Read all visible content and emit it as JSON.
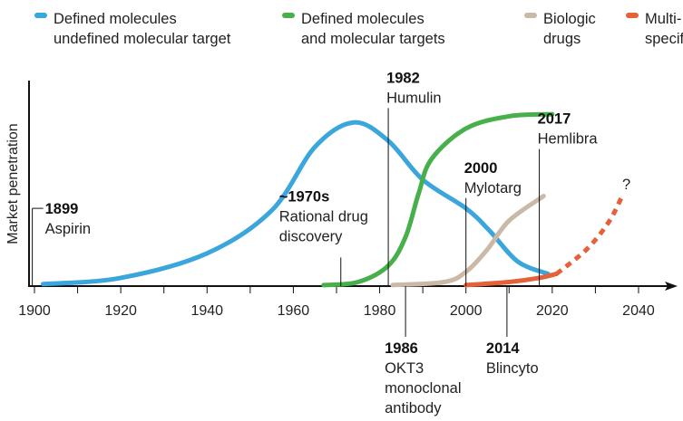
{
  "chart_data": {
    "type": "line",
    "title": "",
    "xlabel": "",
    "ylabel": "Market penetration",
    "xlim": [
      1898,
      2048
    ],
    "ylim": [
      0,
      1
    ],
    "y_units": "relative (no tick values shown)",
    "x_ticks": [
      1900,
      1920,
      1940,
      1960,
      1980,
      2000,
      2020,
      2040
    ],
    "x_minor_tick_step": 10,
    "grid": false,
    "legend": "top",
    "series": [
      {
        "name": "Defined molecules undefined molecular target",
        "legend_lines": [
          "Defined molecules",
          "undefined molecular target"
        ],
        "color": "#3aa6dc",
        "style": "solid",
        "points": [
          [
            1902,
            0.01
          ],
          [
            1920,
            0.04
          ],
          [
            1940,
            0.16
          ],
          [
            1955,
            0.37
          ],
          [
            1965,
            0.68
          ],
          [
            1974,
            0.8
          ],
          [
            1982,
            0.71
          ],
          [
            1990,
            0.52
          ],
          [
            2000,
            0.38
          ],
          [
            2005.5,
            0.27
          ],
          [
            2012,
            0.12
          ],
          [
            2019,
            0.06
          ]
        ]
      },
      {
        "name": "Defined molecules and molecular targets",
        "legend_lines": [
          "Defined molecules",
          "and molecular targets"
        ],
        "color": "#47b04b",
        "style": "solid",
        "points": [
          [
            1967,
            0.005
          ],
          [
            1975,
            0.02
          ],
          [
            1982,
            0.1
          ],
          [
            1986,
            0.24
          ],
          [
            1989,
            0.45
          ],
          [
            1992,
            0.62
          ],
          [
            2000,
            0.77
          ],
          [
            2010,
            0.83
          ],
          [
            2020,
            0.84
          ]
        ]
      },
      {
        "name": "Biologic drugs",
        "legend_lines": [
          "Biologic",
          "drugs"
        ],
        "color": "#c9b9a6",
        "style": "solid",
        "points": [
          [
            1983,
            0.005
          ],
          [
            1995,
            0.02
          ],
          [
            2000,
            0.07
          ],
          [
            2005,
            0.18
          ],
          [
            2010,
            0.32
          ],
          [
            2018,
            0.44
          ]
        ]
      },
      {
        "name": "Multi-specificity",
        "legend_lines": [
          "Multi-",
          "specificity"
        ],
        "color": "#e4613a",
        "style": "solid",
        "points": [
          [
            2000,
            0.005
          ],
          [
            2010,
            0.02
          ],
          [
            2017,
            0.04
          ],
          [
            2021,
            0.06
          ]
        ]
      },
      {
        "name": "Multi-specificity (projected)",
        "color": "#e4613a",
        "style": "dashed",
        "points": [
          [
            2021,
            0.06
          ],
          [
            2028,
            0.18
          ],
          [
            2033,
            0.31
          ],
          [
            2036,
            0.43
          ]
        ]
      }
    ],
    "annotations": [
      {
        "year_label": "1899",
        "text": [
          "Aspirin"
        ],
        "year": 1899.5,
        "side": "above",
        "line_top": 0.38
      },
      {
        "year_label": "~1970s",
        "text": [
          "Rational drug",
          "discovery"
        ],
        "year": 1971,
        "side": "above",
        "line_top": 0.14
      },
      {
        "year_label": "1982",
        "text": [
          "Humulin"
        ],
        "year": 1982,
        "side": "above",
        "line_top": 0.87
      },
      {
        "year_label": "1986",
        "text": [
          "OKT3",
          "monoclonal",
          "antibody"
        ],
        "year": 1986,
        "side": "below"
      },
      {
        "year_label": "2000",
        "text": [
          "Mylotarg"
        ],
        "year": 2000,
        "side": "above",
        "line_top": 0.43
      },
      {
        "year_label": "2014",
        "text": [
          "Blincyto"
        ],
        "year": 2009.5,
        "side": "below"
      },
      {
        "year_label": "2017",
        "text": [
          "Hemlibra"
        ],
        "year": 2017,
        "side": "above",
        "line_top": 0.67
      }
    ],
    "question_mark": "?"
  }
}
